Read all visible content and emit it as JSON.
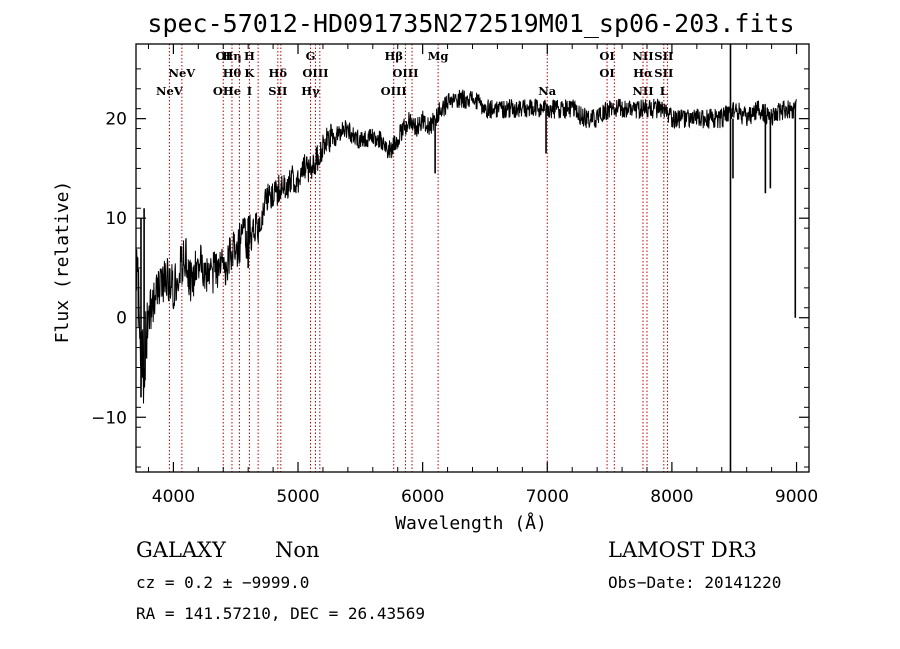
{
  "chart_data": {
    "type": "line",
    "title": "spec-57012-HD091735N272519M01_sp06-203.fits",
    "xlabel": "Wavelength (Å)",
    "ylabel": "Flux (relative)",
    "xlim": [
      3700,
      9100
    ],
    "ylim": [
      -15.5,
      27.5
    ],
    "xticks": [
      4000,
      5000,
      6000,
      7000,
      8000,
      9000
    ],
    "yticks": [
      -10,
      0,
      10,
      20
    ],
    "xtick_labels": [
      "4000",
      "5000",
      "6000",
      "7000",
      "8000",
      "9000"
    ],
    "ytick_labels": [
      "−10",
      "0",
      "10",
      "20"
    ],
    "series": [
      {
        "name": "flux",
        "anchors_x": [
          3700,
          3720,
          3740,
          3760,
          3780,
          3800,
          3850,
          3900,
          3950,
          4000,
          4050,
          4100,
          4150,
          4200,
          4250,
          4300,
          4350,
          4400,
          4450,
          4500,
          4550,
          4600,
          4650,
          4700,
          4750,
          4800,
          4850,
          4900,
          4950,
          5000,
          5050,
          5100,
          5150,
          5200,
          5250,
          5300,
          5350,
          5400,
          5450,
          5500,
          5550,
          5600,
          5650,
          5700,
          5750,
          5800,
          5850,
          5900,
          5950,
          6000,
          6050,
          6100,
          6150,
          6200,
          6300,
          6400,
          6500,
          6600,
          6700,
          6800,
          6900,
          7000,
          7100,
          7200,
          7300,
          7400,
          7500,
          7600,
          7700,
          7800,
          7900,
          8000,
          8100,
          8200,
          8300,
          8400,
          8500,
          8600,
          8700,
          8800,
          8900,
          9000
        ],
        "anchors_y": [
          4,
          2,
          -3,
          -6,
          -2,
          0,
          2,
          3,
          4,
          3,
          5,
          6,
          3,
          6,
          4,
          4,
          5,
          5,
          6,
          7,
          8,
          8,
          9,
          10,
          12,
          12,
          13,
          13,
          14,
          14,
          15,
          15,
          16,
          17,
          18,
          18,
          19,
          19,
          18,
          18,
          18,
          18,
          18,
          17,
          17,
          18,
          19,
          20,
          19,
          20,
          19,
          20,
          21,
          21.5,
          22,
          22,
          21,
          21,
          21,
          21,
          21,
          21,
          21,
          21,
          20,
          20,
          21,
          21,
          21,
          21,
          21,
          20,
          20,
          20,
          20,
          20,
          21,
          20,
          21,
          20,
          21,
          21
        ],
        "noise_amplitude": 1.0
      }
    ],
    "spikes": [
      {
        "x": 3740,
        "ymin": -8,
        "ymax": 10
      },
      {
        "x": 3765,
        "ymin": -7,
        "ymax": 11
      },
      {
        "x": 4600,
        "ymin": 5,
        "ymax": 10
      },
      {
        "x": 6100,
        "ymin": 14.5,
        "ymax": 20
      },
      {
        "x": 6990,
        "ymin": 16.5,
        "ymax": 21
      },
      {
        "x": 8470,
        "ymin": -15.5,
        "ymax": 27.5
      },
      {
        "x": 8490,
        "ymin": 14,
        "ymax": 20
      },
      {
        "x": 8750,
        "ymin": 12.5,
        "ymax": 20
      },
      {
        "x": 8790,
        "ymin": 13,
        "ymax": 20
      },
      {
        "x": 8990,
        "ymin": 0,
        "ymax": 21
      }
    ],
    "line_markers": [
      {
        "x": 3968,
        "rows": [
          "",
          "",
          "NeV"
        ]
      },
      {
        "x": 4068,
        "rows": [
          "",
          "NeV",
          ""
        ]
      },
      {
        "x": 4400,
        "rows": [
          "OI",
          "",
          "OII"
        ]
      },
      {
        "x": 4470,
        "rows": [
          "Hη",
          "Hθ",
          "He"
        ]
      },
      {
        "x": 4530,
        "rows": [
          "",
          "",
          ""
        ]
      },
      {
        "x": 4610,
        "rows": [
          "H",
          "K",
          "I"
        ]
      },
      {
        "x": 4680,
        "rows": [
          "",
          "",
          ""
        ]
      },
      {
        "x": 4838,
        "rows": [
          "",
          "Hδ",
          "SII"
        ]
      },
      {
        "x": 4862,
        "rows": [
          "",
          "",
          ""
        ]
      },
      {
        "x": 5100,
        "rows": [
          "G",
          "",
          "Hγ"
        ]
      },
      {
        "x": 5140,
        "rows": [
          "",
          "OIII",
          ""
        ]
      },
      {
        "x": 5175,
        "rows": [
          "",
          "",
          ""
        ]
      },
      {
        "x": 5768,
        "rows": [
          "Hβ",
          "",
          "OIII"
        ]
      },
      {
        "x": 5862,
        "rows": [
          "",
          "OIII",
          ""
        ]
      },
      {
        "x": 5915,
        "rows": [
          "",
          "",
          ""
        ]
      },
      {
        "x": 6124,
        "rows": [
          "Mg",
          "",
          ""
        ]
      },
      {
        "x": 7000,
        "rows": [
          "",
          "",
          "Na"
        ]
      },
      {
        "x": 7480,
        "rows": [
          "OI",
          "OI",
          ""
        ]
      },
      {
        "x": 7538,
        "rows": [
          "",
          "",
          ""
        ]
      },
      {
        "x": 7768,
        "rows": [
          "NII",
          "Hα",
          "NII"
        ]
      },
      {
        "x": 7800,
        "rows": [
          "",
          "",
          ""
        ]
      },
      {
        "x": 7935,
        "rows": [
          "SII",
          "SII",
          "L"
        ]
      },
      {
        "x": 7965,
        "rows": [
          "",
          "",
          ""
        ]
      }
    ],
    "marker_color": "#c00000"
  },
  "info": {
    "object_class": "GALAXY",
    "subclass": "Non",
    "survey": "LAMOST DR3",
    "cz": "cz = 0.2 ± −9999.0",
    "obs_date": "Obs−Date: 20141220",
    "coords": "RA = 141.57210, DEC =  26.43569"
  }
}
